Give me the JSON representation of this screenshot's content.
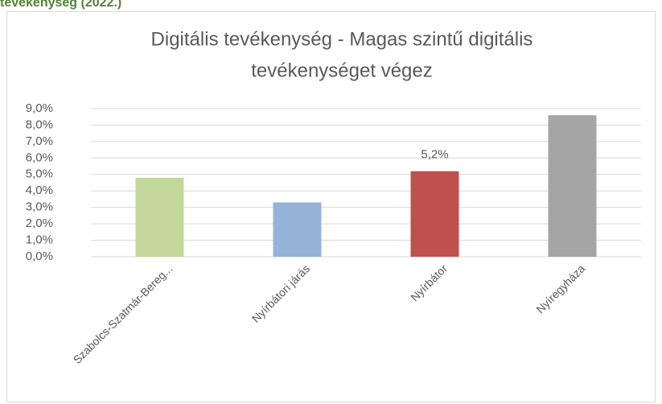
{
  "page_heading": "tevékenység (2022.)",
  "chart_data": {
    "type": "bar",
    "title": [
      "Digitális tevékenység - Magas szintű digitális",
      "tevékenységet végez"
    ],
    "categories": [
      "Szabolcs-Szatmár-Bereg...",
      "Nyírbátori járás",
      "Nyírbátor",
      "Nyíregyháza"
    ],
    "values": [
      4.8,
      3.3,
      5.2,
      8.6
    ],
    "value_labels": [
      null,
      null,
      "5,2%",
      null
    ],
    "colors": [
      "#c4d79b",
      "#95b3d7",
      "#c0504d",
      "#a5a5a5"
    ],
    "ylim": [
      0,
      9
    ],
    "yticks": [
      {
        "value": 0,
        "label": "0,0%"
      },
      {
        "value": 1,
        "label": "1,0%"
      },
      {
        "value": 2,
        "label": "2,0%"
      },
      {
        "value": 3,
        "label": "3,0%"
      },
      {
        "value": 4,
        "label": "4,0%"
      },
      {
        "value": 5,
        "label": "5,0%"
      },
      {
        "value": 6,
        "label": "6,0%"
      },
      {
        "value": 7,
        "label": "7,0%"
      },
      {
        "value": 8,
        "label": "8,0%"
      },
      {
        "value": 9,
        "label": "9,0%"
      }
    ],
    "grid": true
  }
}
